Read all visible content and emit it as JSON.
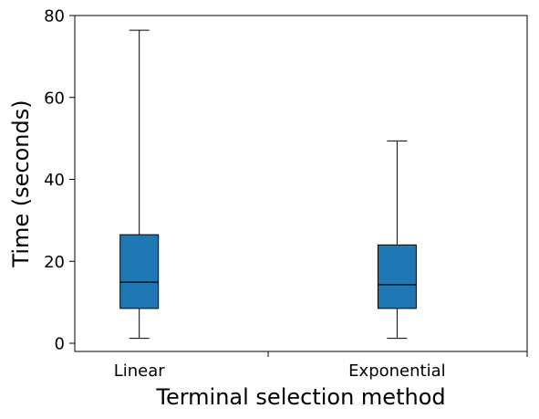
{
  "colors": {
    "box_fill": "#1f77b4",
    "line": "#000000",
    "background": "#ffffff"
  },
  "chart_data": {
    "type": "box",
    "title": "",
    "xlabel": "Terminal selection method",
    "ylabel": "Time (seconds)",
    "ylim": [
      -2,
      80
    ],
    "yticks": [
      0,
      20,
      40,
      60,
      80
    ],
    "ytick_labels": [
      "0",
      "20",
      "40",
      "60",
      "80"
    ],
    "categories": [
      "Linear",
      "Exponential"
    ],
    "boxes": [
      {
        "category": "Linear",
        "whisker_low": 1.2,
        "q1": 8.5,
        "median": 14.9,
        "q3": 26.5,
        "whisker_high": 76.4
      },
      {
        "category": "Exponential",
        "whisker_low": 1.2,
        "q1": 8.5,
        "median": 14.3,
        "q3": 24.0,
        "whisker_high": 49.4
      }
    ],
    "grid": false,
    "legend": "none"
  }
}
